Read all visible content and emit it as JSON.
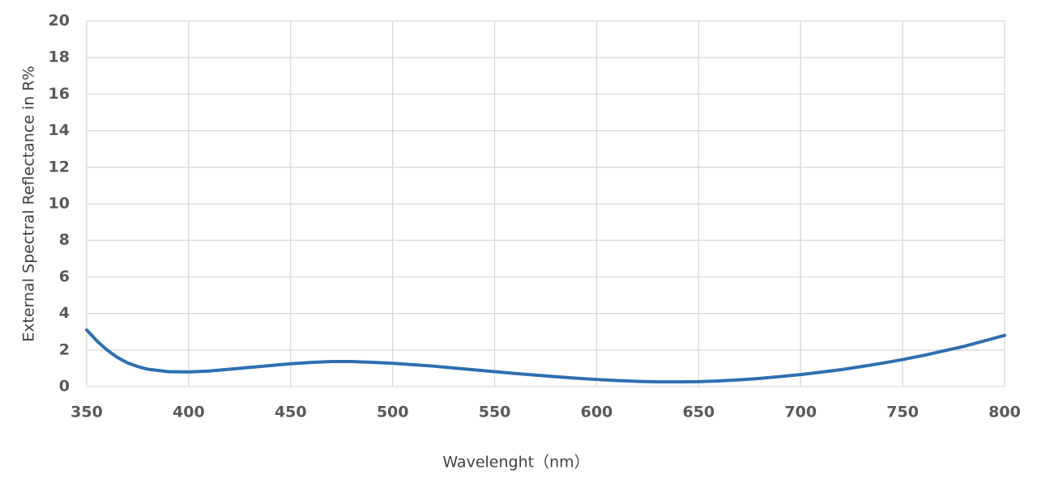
{
  "chart_data": {
    "type": "line",
    "x_label": "Wavelenght（nm）",
    "y_label": "External Spectral Reflectance in R%",
    "x": [
      350,
      355,
      360,
      365,
      370,
      375,
      380,
      390,
      400,
      410,
      420,
      430,
      440,
      450,
      460,
      470,
      480,
      490,
      500,
      510,
      520,
      530,
      540,
      550,
      560,
      570,
      580,
      590,
      600,
      610,
      620,
      630,
      640,
      650,
      660,
      670,
      680,
      690,
      700,
      710,
      720,
      730,
      740,
      750,
      760,
      770,
      780,
      790,
      800
    ],
    "series": [
      {
        "name": "Reflectance",
        "color": "#2e6fb0",
        "values": [
          3.1,
          2.5,
          2.0,
          1.6,
          1.3,
          1.1,
          0.95,
          0.82,
          0.8,
          0.85,
          0.95,
          1.05,
          1.15,
          1.25,
          1.32,
          1.37,
          1.37,
          1.33,
          1.28,
          1.2,
          1.12,
          1.02,
          0.92,
          0.82,
          0.72,
          0.63,
          0.54,
          0.46,
          0.39,
          0.33,
          0.29,
          0.26,
          0.26,
          0.27,
          0.31,
          0.37,
          0.45,
          0.55,
          0.66,
          0.79,
          0.93,
          1.1,
          1.28,
          1.48,
          1.7,
          1.95,
          2.2,
          2.5,
          2.8
        ]
      }
    ],
    "xlim": [
      350,
      800
    ],
    "xticks": [
      350,
      400,
      450,
      500,
      550,
      600,
      650,
      700,
      750,
      800
    ],
    "ylim": [
      0,
      20
    ],
    "yticks": [
      0,
      2,
      4,
      6,
      8,
      10,
      12,
      14,
      16,
      18,
      20
    ],
    "grid": true
  }
}
